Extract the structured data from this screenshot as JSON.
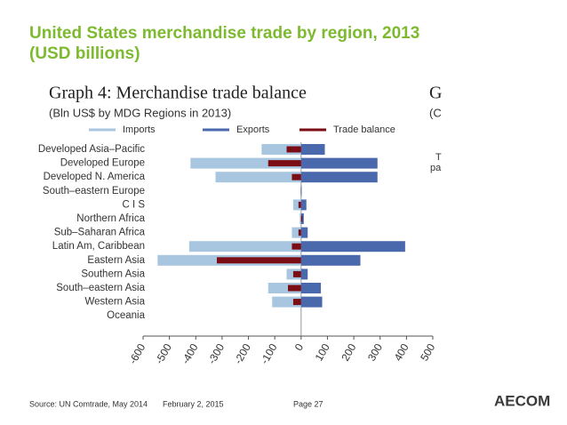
{
  "slide": {
    "title_lines": [
      "United States merchandise trade by region, 2013",
      "(USD billions)"
    ],
    "footer": {
      "source": "Source:  UN Comtrade, May 2014",
      "date": "February 2, 2015",
      "page": "Page 27"
    },
    "logo": "AECOM",
    "cropped_fragments": [
      "G",
      "(C",
      "T",
      "pa"
    ]
  },
  "chart_data": {
    "type": "hbar",
    "title": "Graph 4: Merchandise trade balance",
    "subtitle": "(Bln US$ by MDG Regions in 2013)",
    "categories": [
      "Developed Asia–Pacific",
      "Developed Europe",
      "Developed N. America",
      "South–eastern Europe",
      "C I S",
      "Northern Africa",
      "Sub–Saharan Africa",
      "Latin Am, Caribbean",
      "Eastern Asia",
      "Southern Asia",
      "South–eastern Asia",
      "Western Asia",
      "Oceania"
    ],
    "series": [
      {
        "name": "Imports",
        "color": "#a9c6e0",
        "values": [
          -150,
          -420,
          -325,
          -3,
          -30,
          -5,
          -35,
          -425,
          -545,
          -55,
          -125,
          -110,
          0
        ]
      },
      {
        "name": "Exports",
        "color": "#4a68ac",
        "values": [
          90,
          290,
          290,
          2,
          20,
          10,
          25,
          395,
          225,
          25,
          75,
          80,
          0
        ]
      },
      {
        "name": "Trade balance",
        "color": "#7b0e14",
        "values": [
          -55,
          -125,
          -35,
          -1,
          -10,
          5,
          -10,
          -35,
          -320,
          -30,
          -50,
          -30,
          0
        ]
      }
    ],
    "xlim": [
      -600,
      500
    ],
    "xticks": [
      -600,
      -500,
      -400,
      -300,
      -200,
      -100,
      0,
      100,
      200,
      300,
      400,
      500
    ]
  }
}
